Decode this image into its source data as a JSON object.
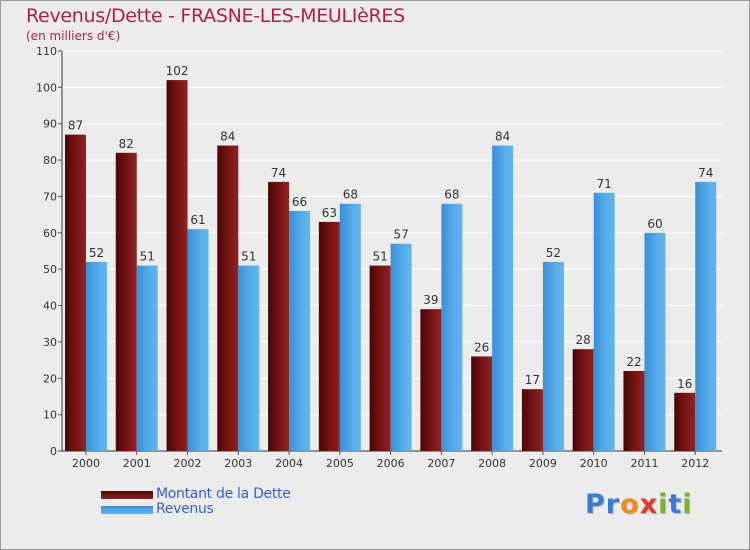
{
  "title": "Revenus/Dette - FRASNE-LES-MEULIèRES",
  "subtitle": "(en milliers d'€)",
  "logo": {
    "text": "Proxiti",
    "letters": [
      "P",
      "r",
      "o",
      "x",
      "i",
      "t",
      "i"
    ],
    "letter_colors": [
      "#3a7ad1",
      "#3a7ad1",
      "#f08a1c",
      "#e03a2a",
      "#7ab532",
      "#3a7ad1",
      "#7ab532"
    ]
  },
  "chart_data": {
    "type": "bar",
    "title": "Revenus/Dette - FRASNE-LES-MEULIèRES",
    "subtitle": "(en milliers d'€)",
    "categories": [
      "2000",
      "2001",
      "2002",
      "2003",
      "2004",
      "2005",
      "2006",
      "2007",
      "2008",
      "2009",
      "2010",
      "2011",
      "2012"
    ],
    "series": [
      {
        "name": "Montant de la Dette",
        "color": "#7a1414",
        "values": [
          87,
          82,
          102,
          84,
          74,
          63,
          51,
          39,
          26,
          17,
          28,
          22,
          16
        ]
      },
      {
        "name": "Revenus",
        "color": "#4da3e6",
        "values": [
          52,
          51,
          61,
          51,
          66,
          68,
          57,
          68,
          84,
          52,
          71,
          60,
          74
        ]
      }
    ],
    "ylim": [
      0,
      110
    ],
    "yticks": [
      0,
      10,
      20,
      30,
      40,
      50,
      60,
      70,
      80,
      90,
      100,
      110
    ],
    "grid": true,
    "legend_position": "bottom-left"
  }
}
